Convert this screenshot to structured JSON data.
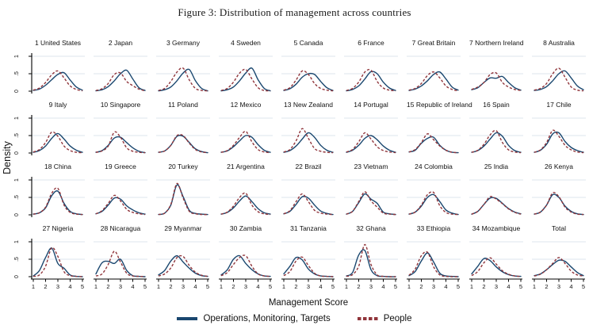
{
  "figure": {
    "title": "Figure 3: Distribution of management across countries",
    "xlabel": "Management Score",
    "ylabel": "Density",
    "legend": [
      {
        "label": "Operations, Monitoring, Targets",
        "style": "solid",
        "color": "#1a476f"
      },
      {
        "label": "People",
        "style": "dashed",
        "color": "#90353b"
      }
    ]
  },
  "colors": {
    "omt": "#1a476f",
    "people": "#90353b",
    "gridline": "#dde4ee",
    "axis": "#000000",
    "background": "#ffffff"
  },
  "chart_data": {
    "type": "line",
    "subtype": "kernel-density small multiples, 4 rows x 9 cols",
    "title": "Figure 3: Distribution of management across countries",
    "xlabel": "Management Score",
    "ylabel": "Density",
    "x": [
      1,
      1.5,
      2,
      2.5,
      3,
      3.5,
      4,
      4.5,
      5
    ],
    "x_ticks": [
      "1",
      "2",
      "3",
      "4",
      "5"
    ],
    "x_tick_values": [
      1,
      2,
      3,
      4,
      5
    ],
    "y_ticks": [
      "0",
      ".5",
      "1"
    ],
    "y_tick_values": [
      0,
      0.5,
      1
    ],
    "xlim": [
      1,
      5
    ],
    "ylim": [
      0,
      1.05
    ],
    "grid": "horizontal lines at .5 and 1",
    "legend_position": "bottom-center",
    "series_names": [
      "Operations, Monitoring, Targets",
      "People"
    ],
    "subplots": [
      {
        "title": "1 United States",
        "omt": [
          0.02,
          0.06,
          0.17,
          0.33,
          0.48,
          0.53,
          0.32,
          0.12,
          0.03
        ],
        "people": [
          0.03,
          0.09,
          0.25,
          0.47,
          0.58,
          0.38,
          0.15,
          0.05,
          0.01
        ]
      },
      {
        "title": "2 Japan",
        "omt": [
          0.01,
          0.04,
          0.13,
          0.3,
          0.5,
          0.6,
          0.35,
          0.1,
          0.02
        ],
        "people": [
          0.02,
          0.07,
          0.22,
          0.48,
          0.52,
          0.28,
          0.16,
          0.06,
          0.01
        ]
      },
      {
        "title": "3 Germany",
        "omt": [
          0.01,
          0.04,
          0.12,
          0.3,
          0.52,
          0.62,
          0.3,
          0.08,
          0.01
        ],
        "people": [
          0.02,
          0.08,
          0.28,
          0.55,
          0.66,
          0.32,
          0.08,
          0.02,
          0.01
        ]
      },
      {
        "title": "4 Sweden",
        "omt": [
          0.01,
          0.04,
          0.12,
          0.3,
          0.52,
          0.66,
          0.33,
          0.08,
          0.01
        ],
        "people": [
          0.02,
          0.08,
          0.26,
          0.52,
          0.62,
          0.35,
          0.1,
          0.02,
          0.01
        ]
      },
      {
        "title": "5 Canada",
        "omt": [
          0.02,
          0.07,
          0.2,
          0.4,
          0.5,
          0.48,
          0.28,
          0.1,
          0.02
        ],
        "people": [
          0.03,
          0.1,
          0.32,
          0.58,
          0.48,
          0.22,
          0.08,
          0.03,
          0.01
        ]
      },
      {
        "title": "6 France",
        "omt": [
          0.01,
          0.05,
          0.15,
          0.35,
          0.56,
          0.5,
          0.26,
          0.09,
          0.02
        ],
        "people": [
          0.02,
          0.08,
          0.26,
          0.55,
          0.6,
          0.28,
          0.09,
          0.03,
          0.01
        ]
      },
      {
        "title": "7 Great Britain",
        "omt": [
          0.02,
          0.06,
          0.15,
          0.3,
          0.48,
          0.55,
          0.35,
          0.12,
          0.03
        ],
        "people": [
          0.03,
          0.08,
          0.22,
          0.45,
          0.55,
          0.38,
          0.15,
          0.05,
          0.01
        ]
      },
      {
        "title": "7 Northern Ireland",
        "omt": [
          0.04,
          0.1,
          0.25,
          0.38,
          0.37,
          0.42,
          0.25,
          0.1,
          0.03
        ],
        "people": [
          0.05,
          0.12,
          0.25,
          0.48,
          0.52,
          0.25,
          0.12,
          0.05,
          0.02
        ]
      },
      {
        "title": "8 Australia",
        "omt": [
          0.02,
          0.05,
          0.13,
          0.3,
          0.5,
          0.58,
          0.38,
          0.15,
          0.04
        ],
        "people": [
          0.03,
          0.08,
          0.22,
          0.5,
          0.66,
          0.4,
          0.12,
          0.03,
          0.01
        ]
      },
      {
        "title": "9 Italy",
        "omt": [
          0.02,
          0.07,
          0.2,
          0.42,
          0.56,
          0.4,
          0.2,
          0.08,
          0.02
        ],
        "people": [
          0.03,
          0.1,
          0.3,
          0.6,
          0.48,
          0.2,
          0.07,
          0.02,
          0.01
        ]
      },
      {
        "title": "10 Singapore",
        "omt": [
          0.02,
          0.07,
          0.22,
          0.43,
          0.45,
          0.3,
          0.15,
          0.05,
          0.01
        ],
        "people": [
          0.02,
          0.06,
          0.2,
          0.6,
          0.45,
          0.15,
          0.05,
          0.02,
          0.01
        ]
      },
      {
        "title": "11 Poland",
        "omt": [
          0.02,
          0.06,
          0.22,
          0.48,
          0.48,
          0.3,
          0.12,
          0.04,
          0.01
        ],
        "people": [
          0.02,
          0.06,
          0.22,
          0.5,
          0.5,
          0.28,
          0.1,
          0.03,
          0.01
        ]
      },
      {
        "title": "12 Mexico",
        "omt": [
          0.02,
          0.06,
          0.18,
          0.35,
          0.5,
          0.45,
          0.24,
          0.08,
          0.02
        ],
        "people": [
          0.02,
          0.07,
          0.22,
          0.45,
          0.62,
          0.32,
          0.1,
          0.03,
          0.01
        ]
      },
      {
        "title": "13 New Zealand",
        "omt": [
          0.02,
          0.07,
          0.2,
          0.4,
          0.58,
          0.45,
          0.22,
          0.08,
          0.02
        ],
        "people": [
          0.03,
          0.1,
          0.35,
          0.7,
          0.42,
          0.13,
          0.05,
          0.02,
          0.01
        ]
      },
      {
        "title": "14 Portugal",
        "omt": [
          0.02,
          0.08,
          0.22,
          0.42,
          0.5,
          0.38,
          0.2,
          0.08,
          0.02
        ],
        "people": [
          0.03,
          0.1,
          0.32,
          0.58,
          0.4,
          0.18,
          0.07,
          0.03,
          0.01
        ]
      },
      {
        "title": "15 Republic of Ireland",
        "omt": [
          0.03,
          0.08,
          0.28,
          0.42,
          0.45,
          0.22,
          0.08,
          0.02,
          0.01
        ],
        "people": [
          0.03,
          0.1,
          0.3,
          0.55,
          0.38,
          0.2,
          0.08,
          0.02,
          0.01
        ]
      },
      {
        "title": "16 Spain",
        "omt": [
          0.02,
          0.07,
          0.2,
          0.4,
          0.58,
          0.48,
          0.22,
          0.07,
          0.02
        ],
        "people": [
          0.02,
          0.08,
          0.25,
          0.52,
          0.64,
          0.3,
          0.09,
          0.03,
          0.01
        ]
      },
      {
        "title": "17 Chile",
        "omt": [
          0.02,
          0.08,
          0.25,
          0.55,
          0.58,
          0.33,
          0.16,
          0.07,
          0.02
        ],
        "people": [
          0.02,
          0.09,
          0.3,
          0.65,
          0.48,
          0.22,
          0.09,
          0.03,
          0.01
        ]
      },
      {
        "title": "18 China",
        "omt": [
          0.02,
          0.06,
          0.2,
          0.55,
          0.68,
          0.33,
          0.1,
          0.03,
          0.01
        ],
        "people": [
          0.02,
          0.06,
          0.22,
          0.62,
          0.76,
          0.28,
          0.07,
          0.02,
          0.01
        ]
      },
      {
        "title": "19 Greece",
        "omt": [
          0.03,
          0.1,
          0.28,
          0.48,
          0.45,
          0.26,
          0.14,
          0.06,
          0.02
        ],
        "people": [
          0.03,
          0.12,
          0.33,
          0.56,
          0.4,
          0.16,
          0.07,
          0.03,
          0.01
        ]
      },
      {
        "title": "20 Turkey",
        "omt": [
          0.01,
          0.05,
          0.28,
          0.86,
          0.52,
          0.13,
          0.04,
          0.02,
          0.01
        ],
        "people": [
          0.01,
          0.05,
          0.3,
          0.9,
          0.48,
          0.1,
          0.03,
          0.01,
          0.01
        ]
      },
      {
        "title": "21 Argentina",
        "omt": [
          0.02,
          0.07,
          0.2,
          0.4,
          0.54,
          0.38,
          0.18,
          0.06,
          0.02
        ],
        "people": [
          0.02,
          0.08,
          0.25,
          0.5,
          0.62,
          0.28,
          0.09,
          0.03,
          0.01
        ]
      },
      {
        "title": "22 Brazil",
        "omt": [
          0.03,
          0.1,
          0.3,
          0.52,
          0.48,
          0.28,
          0.11,
          0.04,
          0.01
        ],
        "people": [
          0.03,
          0.12,
          0.38,
          0.6,
          0.38,
          0.13,
          0.05,
          0.02,
          0.01
        ]
      },
      {
        "title": "23 Vietnam",
        "omt": [
          0.02,
          0.1,
          0.35,
          0.6,
          0.45,
          0.33,
          0.08,
          0.03,
          0.01
        ],
        "people": [
          0.02,
          0.1,
          0.38,
          0.66,
          0.4,
          0.22,
          0.05,
          0.02,
          0.01
        ]
      },
      {
        "title": "24 Colombia",
        "omt": [
          0.02,
          0.08,
          0.25,
          0.5,
          0.58,
          0.38,
          0.14,
          0.05,
          0.01
        ],
        "people": [
          0.02,
          0.08,
          0.28,
          0.58,
          0.64,
          0.26,
          0.07,
          0.02,
          0.01
        ]
      },
      {
        "title": "25 India",
        "omt": [
          0.02,
          0.1,
          0.3,
          0.48,
          0.47,
          0.33,
          0.18,
          0.08,
          0.03
        ],
        "people": [
          0.02,
          0.1,
          0.3,
          0.52,
          0.45,
          0.32,
          0.17,
          0.07,
          0.02
        ]
      },
      {
        "title": "26 Kenya",
        "omt": [
          0.02,
          0.08,
          0.28,
          0.58,
          0.5,
          0.25,
          0.1,
          0.03,
          0.01
        ],
        "people": [
          0.02,
          0.08,
          0.28,
          0.63,
          0.52,
          0.22,
          0.08,
          0.02,
          0.01
        ]
      },
      {
        "title": "27 Nigeria",
        "omt": [
          0.02,
          0.18,
          0.55,
          0.82,
          0.38,
          0.24,
          0.05,
          0.01,
          0.0
        ],
        "people": [
          0.01,
          0.05,
          0.3,
          0.83,
          0.58,
          0.14,
          0.03,
          0.01,
          0.0
        ]
      },
      {
        "title": "28 Nicaragua",
        "omt": [
          0.08,
          0.4,
          0.44,
          0.38,
          0.5,
          0.18,
          0.03,
          0.01,
          0.0
        ],
        "people": [
          0.02,
          0.08,
          0.35,
          0.73,
          0.42,
          0.1,
          0.02,
          0.01,
          0.0
        ]
      },
      {
        "title": "29 Myanmar",
        "omt": [
          0.05,
          0.18,
          0.45,
          0.6,
          0.42,
          0.24,
          0.1,
          0.03,
          0.01
        ],
        "people": [
          0.02,
          0.08,
          0.25,
          0.55,
          0.58,
          0.32,
          0.13,
          0.04,
          0.01
        ]
      },
      {
        "title": "30 Zambia",
        "omt": [
          0.05,
          0.2,
          0.5,
          0.6,
          0.38,
          0.2,
          0.08,
          0.02,
          0.01
        ],
        "people": [
          0.03,
          0.12,
          0.35,
          0.55,
          0.6,
          0.3,
          0.08,
          0.02,
          0.01
        ]
      },
      {
        "title": "31 Tanzania",
        "omt": [
          0.08,
          0.3,
          0.55,
          0.48,
          0.22,
          0.08,
          0.02,
          0.01,
          0.0
        ],
        "people": [
          0.03,
          0.15,
          0.45,
          0.56,
          0.32,
          0.1,
          0.02,
          0.01,
          0.0
        ]
      },
      {
        "title": "32 Ghana",
        "omt": [
          0.02,
          0.12,
          0.62,
          0.75,
          0.2,
          0.03,
          0.01,
          0.0,
          0.0
        ],
        "people": [
          0.01,
          0.06,
          0.3,
          0.92,
          0.35,
          0.05,
          0.01,
          0.0,
          0.0
        ]
      },
      {
        "title": "33 Ethiopia",
        "omt": [
          0.03,
          0.15,
          0.45,
          0.68,
          0.42,
          0.1,
          0.02,
          0.01,
          0.0
        ],
        "people": [
          0.04,
          0.22,
          0.6,
          0.7,
          0.28,
          0.05,
          0.01,
          0.0,
          0.0
        ]
      },
      {
        "title": "34 Mozambique",
        "omt": [
          0.08,
          0.3,
          0.52,
          0.46,
          0.28,
          0.14,
          0.06,
          0.02,
          0.01
        ],
        "people": [
          0.03,
          0.15,
          0.4,
          0.54,
          0.36,
          0.17,
          0.07,
          0.02,
          0.01
        ]
      },
      {
        "title": "Total",
        "omt": [
          0.03,
          0.08,
          0.2,
          0.35,
          0.47,
          0.44,
          0.28,
          0.12,
          0.03
        ],
        "people": [
          0.02,
          0.07,
          0.2,
          0.38,
          0.55,
          0.38,
          0.16,
          0.05,
          0.02
        ]
      }
    ]
  }
}
